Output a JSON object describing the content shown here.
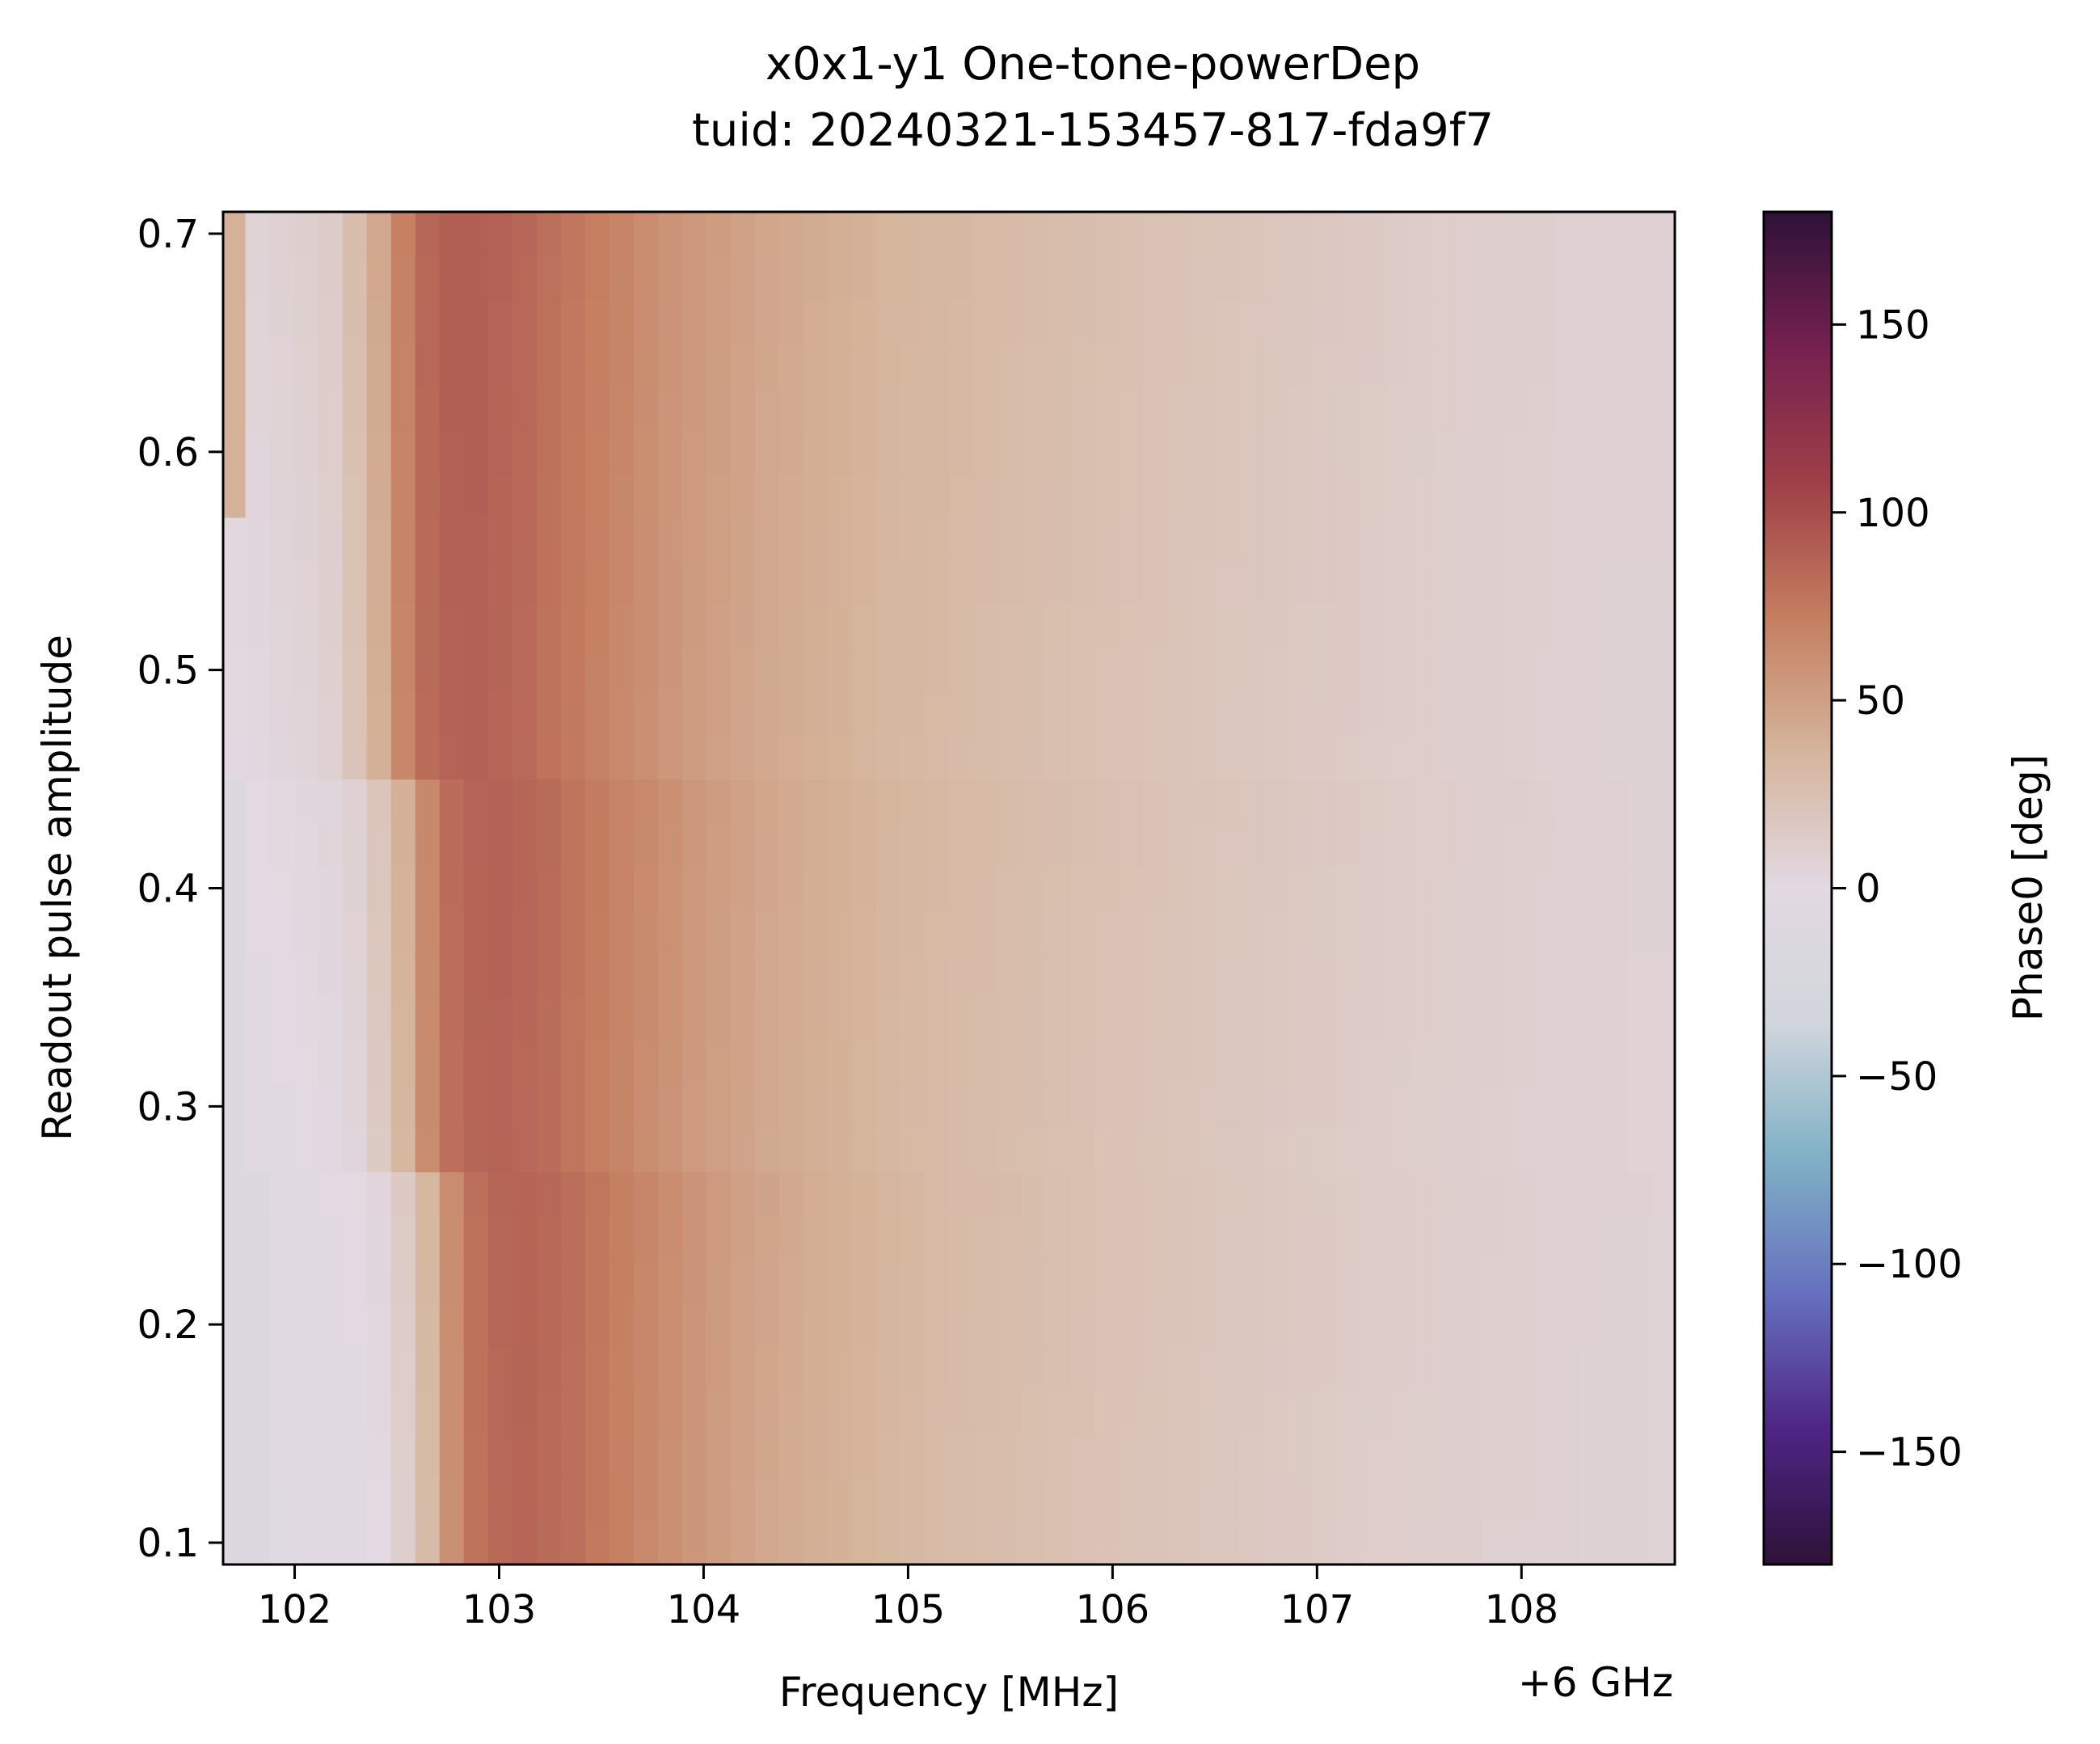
{
  "chart_data": {
    "type": "heatmap",
    "title": "x0x1-y1 One-tone-powerDep",
    "subtitle": "tuid: 20240321-153457-817-fda9f7",
    "xlabel": "Frequency [MHz]",
    "x_offset_label": "+6 GHz",
    "ylabel": "Readout pulse amplitude",
    "colorbar_label": "Phase0 [deg]",
    "colormap": "twilight_shifted",
    "colorbar_colors": [
      "#2e1238",
      "#4e2585",
      "#6670bf",
      "#7fb0c6",
      "#d1d6dc",
      "#e2d9e2",
      "#d5b59c",
      "#c57e60",
      "#9e3f48",
      "#75204f",
      "#2e1238"
    ],
    "xlim": [
      101.65,
      108.75
    ],
    "ylim": [
      0.09,
      0.71
    ],
    "clim": [
      -180,
      180
    ],
    "x_ticks": [
      102,
      103,
      104,
      105,
      106,
      107,
      108
    ],
    "x_tick_labels": [
      "102",
      "103",
      "104",
      "105",
      "106",
      "107",
      "108"
    ],
    "y_ticks": [
      0.1,
      0.2,
      0.3,
      0.4,
      0.5,
      0.6,
      0.7
    ],
    "y_tick_labels": [
      "0.1",
      "0.2",
      "0.3",
      "0.4",
      "0.5",
      "0.6",
      "0.7"
    ],
    "colorbar_ticks": [
      -150,
      -100,
      -50,
      0,
      50,
      100,
      150
    ],
    "colorbar_tick_labels": [
      "−150",
      "−100",
      "−50",
      "0",
      "50",
      "100",
      "150"
    ],
    "x_range": [
      101.7,
      108.7
    ],
    "x_count": 60,
    "y_range": [
      0.1,
      0.7
    ],
    "y_count": 31,
    "phase_profile": [
      [
        -6,
        5
      ],
      [
        -5,
        6
      ],
      [
        -4,
        8
      ],
      [
        -3,
        10
      ],
      [
        0,
        14
      ],
      [
        10,
        28
      ],
      [
        30,
        45
      ],
      [
        60,
        70
      ],
      [
        78,
        85
      ],
      [
        84,
        90
      ],
      [
        86,
        90
      ],
      [
        83,
        88
      ],
      [
        80,
        85
      ],
      [
        75,
        80
      ],
      [
        70,
        76
      ],
      [
        65,
        72
      ],
      [
        60,
        68
      ],
      [
        56,
        63
      ],
      [
        52,
        58
      ],
      [
        48,
        55
      ],
      [
        45,
        52
      ],
      [
        42,
        49
      ],
      [
        40,
        46
      ],
      [
        38,
        44
      ],
      [
        36,
        42
      ],
      [
        34,
        40
      ],
      [
        32,
        38
      ],
      [
        30,
        36
      ],
      [
        29,
        35
      ],
      [
        28,
        34
      ],
      [
        27,
        33
      ],
      [
        26,
        31
      ],
      [
        25,
        30
      ],
      [
        24,
        29
      ],
      [
        23,
        28
      ],
      [
        22,
        27
      ],
      [
        21,
        26
      ],
      [
        20,
        25
      ],
      [
        19,
        24
      ],
      [
        18,
        23
      ],
      [
        17,
        22
      ],
      [
        16,
        21
      ],
      [
        15,
        20
      ],
      [
        14,
        19
      ],
      [
        13,
        18
      ],
      [
        12,
        17
      ],
      [
        12,
        16
      ],
      [
        11,
        15
      ],
      [
        10,
        14
      ],
      [
        10,
        13
      ],
      [
        9,
        12
      ],
      [
        9,
        11
      ],
      [
        8,
        11
      ],
      [
        8,
        10
      ],
      [
        7,
        10
      ],
      [
        7,
        9
      ],
      [
        7,
        9
      ],
      [
        6,
        8
      ],
      [
        6,
        8
      ],
      [
        6,
        8
      ]
    ],
    "low_amp_edge": {
      "amp_threshold": 0.55,
      "extra_columns": 3,
      "phase": -12
    },
    "high_amp_left_phase": 38
  }
}
